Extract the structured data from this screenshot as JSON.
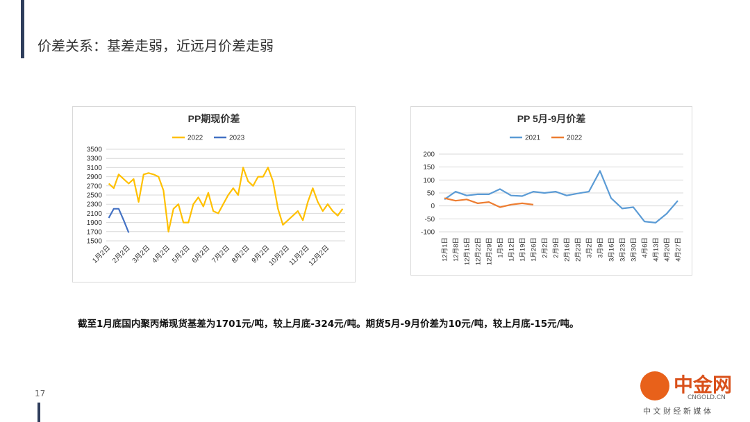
{
  "header": {
    "title": "价差关系：基差走弱，近远月价差走弱"
  },
  "caption": "截至1月底国内聚丙烯现货基差为1701元/吨，较上月底-324元/吨。期货5月-9月价差为10元/吨，较上月底-15元/吨。",
  "page_number": "17",
  "watermark": {
    "brand": "中金网",
    "site": "CNGOLD.CN",
    "slogan": "中 文 财 经 新 媒 体"
  },
  "chart_data": [
    {
      "type": "line",
      "title": "PP期现价差",
      "categories": [
        "1月2日",
        null,
        null,
        null,
        "2月2日",
        null,
        null,
        null,
        "3月2日",
        null,
        null,
        null,
        "4月2日",
        null,
        null,
        null,
        "5月2日",
        null,
        null,
        null,
        "6月2日",
        null,
        null,
        null,
        "7月2日",
        null,
        null,
        null,
        "8月2日",
        null,
        null,
        null,
        "9月2日",
        null,
        null,
        null,
        "10月2日",
        null,
        null,
        null,
        "11月2日",
        null,
        null,
        null,
        "12月2日",
        null,
        null,
        null
      ],
      "series": [
        {
          "name": "2022",
          "color": "#FFC000",
          "values": [
            2750,
            2650,
            2950,
            2850,
            2750,
            2850,
            2350,
            2950,
            2980,
            2950,
            2900,
            2600,
            1700,
            2200,
            2300,
            1900,
            1900,
            2300,
            2450,
            2250,
            2550,
            2150,
            2100,
            2300,
            2500,
            2650,
            2500,
            3100,
            2800,
            2700,
            2900,
            2900,
            3100,
            2800,
            2200,
            1850,
            1950,
            2050,
            2150,
            1950,
            2350,
            2650,
            2350,
            2150,
            2300,
            2150,
            2050,
            2200
          ]
        },
        {
          "name": "2023",
          "color": "#4472C4",
          "values": [
            2000,
            2200,
            2200,
            1950,
            1680,
            null,
            null,
            null,
            null,
            null,
            null,
            null,
            null,
            null,
            null,
            null,
            null,
            null,
            null,
            null,
            null,
            null,
            null,
            null,
            null,
            null,
            null,
            null,
            null,
            null,
            null,
            null,
            null,
            null,
            null,
            null,
            null,
            null,
            null,
            null,
            null,
            null,
            null,
            null,
            null,
            null,
            null,
            null
          ]
        }
      ],
      "ylim": [
        1500,
        3500
      ],
      "yticks": [
        1500,
        1700,
        1900,
        2100,
        2300,
        2500,
        2700,
        2900,
        3100,
        3300,
        3500
      ],
      "grid": true,
      "legend": "top"
    },
    {
      "type": "line",
      "title": "PP 5月-9月价差",
      "categories": [
        "12月1日",
        "12月8日",
        "12月15日",
        "12月22日",
        "12月29日",
        "1月5日",
        "1月12日",
        "1月19日",
        "1月26日",
        "2月2日",
        "2月9日",
        "2月16日",
        "2月23日",
        "3月2日",
        "3月9日",
        "3月16日",
        "3月23日",
        "3月30日",
        "4月6日",
        "4月13日",
        "4月20日",
        "4月27日"
      ],
      "series": [
        {
          "name": "2021",
          "color": "#5B9BD5",
          "values": [
            25,
            55,
            40,
            45,
            45,
            65,
            40,
            38,
            55,
            50,
            55,
            40,
            48,
            55,
            135,
            30,
            -10,
            -5,
            -60,
            -65,
            -30,
            20
          ]
        },
        {
          "name": "2022",
          "color": "#ED7D31",
          "values": [
            30,
            20,
            25,
            10,
            15,
            -5,
            5,
            10,
            5,
            null,
            null,
            null,
            null,
            null,
            null,
            null,
            null,
            null,
            null,
            null,
            null,
            null
          ]
        }
      ],
      "ylim": [
        -100,
        200
      ],
      "yticks": [
        -100,
        -50,
        0,
        50,
        100,
        150,
        200
      ],
      "grid": true,
      "legend": "top"
    }
  ]
}
